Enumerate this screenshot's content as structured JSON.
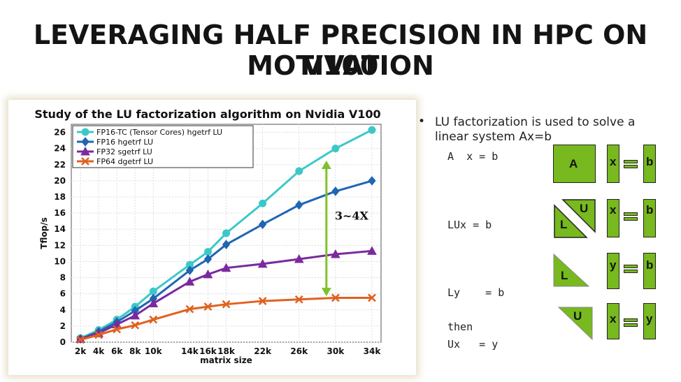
{
  "slide": {
    "title_line1": "LEVERAGING HALF PRECISION IN HPC ON V100",
    "title_line2": "MOTIVATION"
  },
  "bullet": {
    "marker": "•",
    "text": "LU factorization is used to solve a linear system Ax=b"
  },
  "equations": {
    "eq1": "A  x = b",
    "eq2": "LUx = b",
    "eq3": "Ly    = b",
    "eq4": "then",
    "eq5": "Ux   = y"
  },
  "diagram_labels": {
    "row1": {
      "matrix": "A",
      "vec": "x",
      "rhs": "b"
    },
    "row2": {
      "lower": "L",
      "upper": "U",
      "vec": "x",
      "rhs": "b"
    },
    "row3": {
      "lower": "L",
      "vec": "y",
      "rhs": "b"
    },
    "row4": {
      "upper": "U",
      "vec": "x",
      "rhs": "y"
    }
  },
  "colors": {
    "diagram_green": "#77b91e"
  },
  "chart_data": {
    "type": "line",
    "title": "Study of the LU factorization algorithm on Nvidia V100",
    "xlabel": "matrix size",
    "ylabel": "Tflop/s",
    "categories": [
      "2k",
      "4k",
      "6k",
      "8k",
      "10k",
      "14k",
      "16k",
      "18k",
      "22k",
      "26k",
      "30k",
      "34k"
    ],
    "x": [
      2,
      4,
      6,
      8,
      10,
      14,
      16,
      18,
      22,
      26,
      30,
      34
    ],
    "ylim": [
      0,
      27
    ],
    "yticks": [
      0,
      2,
      4,
      6,
      8,
      10,
      12,
      14,
      16,
      18,
      20,
      22,
      24,
      26
    ],
    "grid": true,
    "legend_position": "top-left",
    "series": [
      {
        "name": "FP16-TC (Tensor Cores) hgetrf LU",
        "color": "#3cc8c8",
        "marker": "circle",
        "values": [
          0.5,
          1.5,
          2.8,
          4.4,
          6.3,
          9.6,
          11.2,
          13.5,
          17.2,
          21.2,
          24.0,
          26.3
        ]
      },
      {
        "name": "FP16 hgetrf LU",
        "color": "#1f66b3",
        "marker": "diamond",
        "values": [
          0.4,
          1.3,
          2.5,
          3.9,
          5.4,
          8.9,
          10.3,
          12.1,
          14.6,
          17.0,
          18.7,
          20.0
        ]
      },
      {
        "name": "FP32 sgetrf LU",
        "color": "#7a2a9e",
        "marker": "triangle",
        "values": [
          0.4,
          1.1,
          2.2,
          3.3,
          4.8,
          7.5,
          8.4,
          9.2,
          9.7,
          10.3,
          10.9,
          11.3
        ]
      },
      {
        "name": "FP64 dgetrf LU",
        "color": "#e0611f",
        "marker": "x",
        "values": [
          0.3,
          0.9,
          1.6,
          2.1,
          2.8,
          4.1,
          4.4,
          4.7,
          5.1,
          5.3,
          5.5,
          5.5
        ]
      }
    ],
    "annotation": {
      "text": "3~4X",
      "arrow_color": "#7ec12a",
      "x": 29,
      "y_top": 22.5,
      "y_bottom": 5.7
    }
  }
}
